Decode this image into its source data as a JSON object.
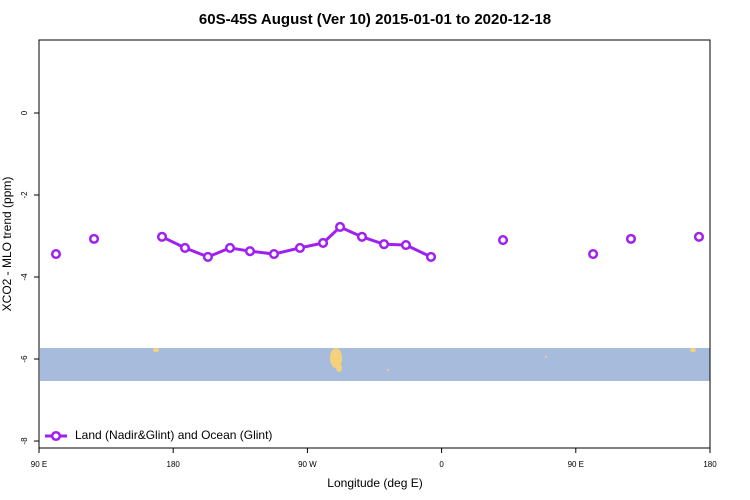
{
  "chart_data": {
    "type": "line",
    "title": "60S-45S August (Ver 10)   2015-01-01 to 2020-12-18",
    "x_label": "Longitude (deg E)",
    "y_label": "XCO2 - MLO trend (ppm)",
    "xlim": [
      90,
      540
    ],
    "xticks": [
      {
        "value": 90,
        "label": "90 E"
      },
      {
        "value": 180,
        "label": "180"
      },
      {
        "value": 270,
        "label": "90 W"
      },
      {
        "value": 360,
        "label": "0"
      },
      {
        "value": 450,
        "label": "90 E"
      },
      {
        "value": 540,
        "label": "180"
      }
    ],
    "ylim": [
      -8.17,
      1.78
    ],
    "yticks": [
      -8,
      -6,
      -4,
      -2,
      0
    ],
    "legend": "bottomleft",
    "series": [
      {
        "name": "Land (Nadir&Glint) and Ocean (Glint)",
        "color": "#a020f0",
        "x": [
          101.4,
          null,
          126.9,
          null,
          172.5,
          187.9,
          203.3,
          218.1,
          231.5,
          247.6,
          265,
          280.5,
          291.9,
          306.6,
          321.4,
          336.1,
          352.9,
          null,
          401.2,
          null,
          461.6,
          null,
          487.0,
          null,
          532.6
        ],
        "values": [
          -3.44,
          null,
          -3.07,
          null,
          -3.02,
          -3.29,
          -3.51,
          -3.29,
          -3.37,
          -3.44,
          -3.29,
          -3.17,
          -2.78,
          -3.02,
          -3.2,
          -3.22,
          -3.51,
          null,
          -3.1,
          null,
          -3.44,
          null,
          -3.07,
          null,
          -3.02
        ]
      }
    ]
  }
}
